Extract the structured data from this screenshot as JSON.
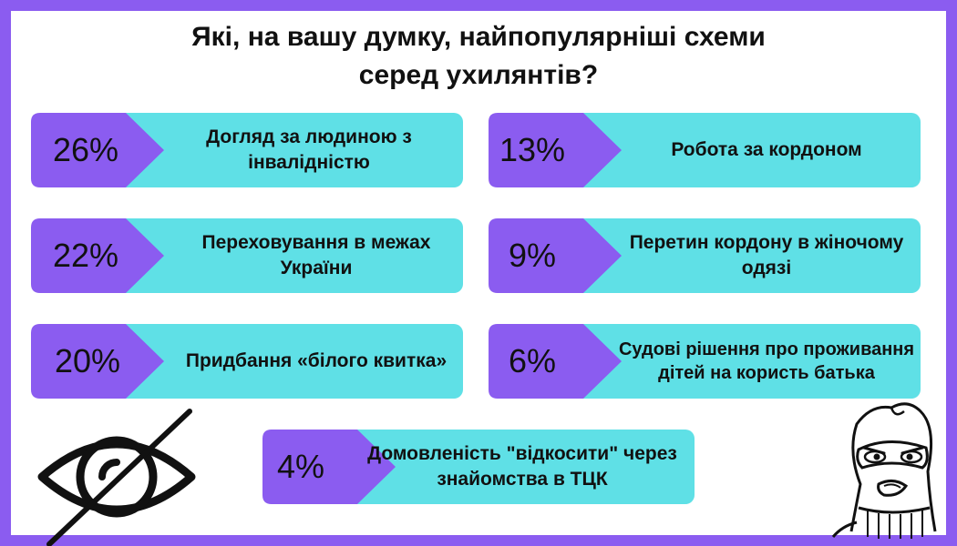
{
  "title": {
    "line1": "Які, на вашу думку, найпопулярніші схеми",
    "line2": "серед ухилянтів?"
  },
  "colors": {
    "frame": "#8b5cf0",
    "badge": "#8b5cf0",
    "bar": "#5fe0e6",
    "text": "#111111"
  },
  "chart_data": {
    "type": "bar",
    "title": "Які, на вашу думку, найпопулярніші схеми серед ухилянтів?",
    "unit": "%",
    "items": [
      {
        "label": "Догляд за людиною з інвалідністю",
        "value": 26,
        "display": "26%"
      },
      {
        "label": "Робота за кордоном",
        "value": 13,
        "display": "13%"
      },
      {
        "label": "Переховування в межах України",
        "value": 22,
        "display": "22%"
      },
      {
        "label": "Перетин кордону в жіночому одязі",
        "value": 9,
        "display": "9%"
      },
      {
        "label": "Придбання «білого квитка»",
        "value": 20,
        "display": "20%"
      },
      {
        "label": "Судові рішення про проживання дітей на користь батька",
        "value": 6,
        "display": "6%"
      },
      {
        "label": "Домовленість \"відкосити\" через знайомства в ТЦК",
        "value": 4,
        "display": "4%"
      }
    ]
  },
  "icons": {
    "left": "crossed-out-eye-icon",
    "right": "balaclava-face-icon"
  }
}
